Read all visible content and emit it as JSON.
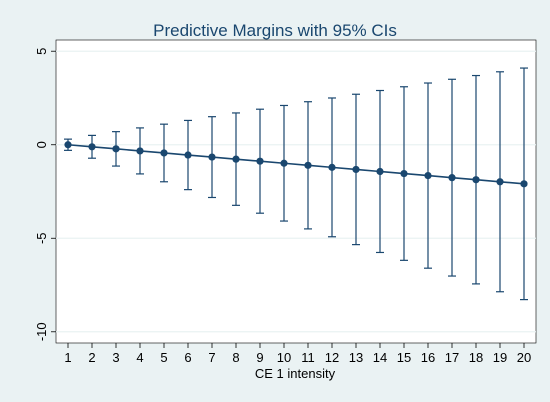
{
  "chart_data": {
    "type": "line",
    "title": "Predictive Margins with 95% CIs",
    "xlabel": "CE 1 intensity",
    "ylabel": "",
    "x": [
      1,
      2,
      3,
      4,
      5,
      6,
      7,
      8,
      9,
      10,
      11,
      12,
      13,
      14,
      15,
      16,
      17,
      18,
      19,
      20
    ],
    "series": [
      {
        "values": [
          0.0,
          -0.11,
          -0.22,
          -0.33,
          -0.44,
          -0.55,
          -0.66,
          -0.77,
          -0.88,
          -0.99,
          -1.1,
          -1.21,
          -1.32,
          -1.43,
          -1.54,
          -1.65,
          -1.76,
          -1.87,
          -1.98,
          -2.09
        ],
        "ci_lower": [
          -0.3,
          -0.72,
          -1.14,
          -1.56,
          -1.98,
          -2.4,
          -2.82,
          -3.24,
          -3.66,
          -4.08,
          -4.5,
          -4.92,
          -5.34,
          -5.76,
          -6.18,
          -6.6,
          -7.02,
          -7.44,
          -7.86,
          -8.28
        ],
        "ci_upper": [
          0.3,
          0.5,
          0.7,
          0.9,
          1.1,
          1.3,
          1.5,
          1.7,
          1.9,
          2.1,
          2.3,
          2.5,
          2.7,
          2.9,
          3.1,
          3.3,
          3.5,
          3.7,
          3.9,
          4.1
        ]
      }
    ],
    "xticks": [
      "1",
      "2",
      "3",
      "4",
      "5",
      "6",
      "7",
      "8",
      "9",
      "10",
      "11",
      "12",
      "13",
      "14",
      "15",
      "16",
      "17",
      "18",
      "19",
      "20"
    ],
    "yticks": [
      5,
      0,
      -5,
      -10
    ],
    "ytick_labels": [
      "5",
      "0",
      "-5",
      "-10"
    ],
    "xlim": [
      0.5,
      20.5
    ],
    "ylim": [
      -10.6,
      5.6
    ],
    "grid": "horizontal",
    "legend": "none",
    "colors": {
      "series": "#1a476f",
      "plot_background": "#ffffff",
      "outer_background": "#eaf2f3",
      "gridline": "#eaf2f3",
      "title": "#1a476f"
    }
  }
}
